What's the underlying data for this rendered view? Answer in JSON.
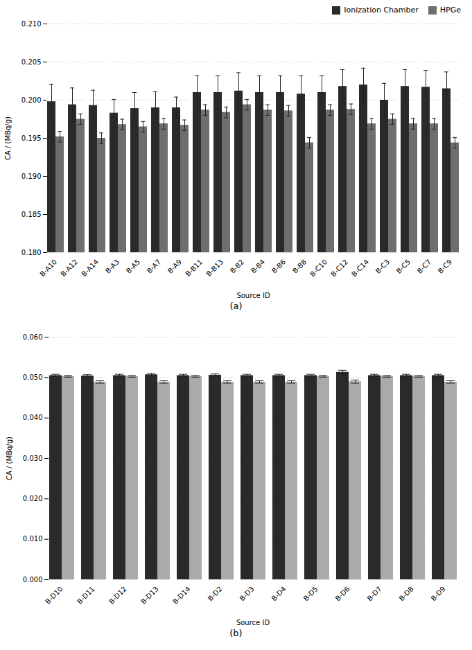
{
  "chart_data": [
    {
      "type": "bar",
      "title": "(a)",
      "categories": [
        "B-A10",
        "B-A12",
        "B-A14",
        "B-A3",
        "B-A5",
        "B-A7",
        "B-A9",
        "B-B11",
        "B-B13",
        "B-B2",
        "B-B4",
        "B-B6",
        "B-B8",
        "B-C10",
        "B-C12",
        "B-C14",
        "B-C3",
        "B-C5",
        "B-C7",
        "B-C9"
      ],
      "series": [
        {
          "name": "Ionization Chamber",
          "color": "#2a2a2a",
          "values": [
            0.1998,
            0.1994,
            0.1993,
            0.1983,
            0.1989,
            0.199,
            0.199,
            0.201,
            0.201,
            0.2012,
            0.201,
            0.201,
            0.2008,
            0.201,
            0.2018,
            0.202,
            0.2,
            0.2018,
            0.2017,
            0.2015
          ],
          "errors": [
            0.0023,
            0.0022,
            0.002,
            0.0018,
            0.0021,
            0.0021,
            0.0014,
            0.0022,
            0.0022,
            0.0024,
            0.0022,
            0.0022,
            0.0024,
            0.0022,
            0.0022,
            0.0022,
            0.0022,
            0.0022,
            0.0022,
            0.0022
          ]
        },
        {
          "name": "HPGe",
          "color": "#6e6e6e",
          "values": [
            0.1952,
            0.1975,
            0.195,
            0.1968,
            0.1965,
            0.1969,
            0.1967,
            0.1987,
            0.1984,
            0.1994,
            0.1987,
            0.1986,
            0.1944,
            0.1987,
            0.1988,
            0.1969,
            0.1975,
            0.1969,
            0.1969,
            0.1944
          ],
          "errors": [
            0.0007,
            0.0007,
            0.0007,
            0.0007,
            0.0007,
            0.0007,
            0.0007,
            0.0007,
            0.0007,
            0.0007,
            0.0007,
            0.0007,
            0.0007,
            0.0007,
            0.0007,
            0.0007,
            0.0007,
            0.0007,
            0.0007,
            0.0007
          ]
        }
      ],
      "ylim": [
        0.18,
        0.21
      ],
      "yticks": [
        {
          "value": 0.18,
          "label": "0.180"
        },
        0.185,
        {
          "value": 0.19,
          "label": "0.190"
        },
        0.195,
        {
          "value": 0.2,
          "label": "0.200"
        },
        0.205,
        {
          "value": 0.21,
          "label": "0.210"
        }
      ],
      "ylabel": "CA / (MBq/g)",
      "xlabel": "Source ID",
      "grid": true,
      "legend": "upper right"
    },
    {
      "type": "bar",
      "title": "(b)",
      "categories": [
        "B-D10",
        "B-D11",
        "B-D12",
        "B-D13",
        "B-D14",
        "B-D2",
        "B-D3",
        "B-D4",
        "B-D5",
        "B-D6",
        "B-D7",
        "B-D8",
        "B-D9"
      ],
      "series": [
        {
          "name": "Ionization Chamber",
          "color": "#2a2a2a",
          "values": [
            0.0505,
            0.0504,
            0.0505,
            0.0507,
            0.0505,
            0.0506,
            0.0505,
            0.0505,
            0.0505,
            0.0513,
            0.0505,
            0.0505,
            0.0505
          ],
          "errors": [
            0.0003,
            0.0003,
            0.0003,
            0.0003,
            0.0003,
            0.0003,
            0.0003,
            0.0003,
            0.0003,
            0.0005,
            0.0003,
            0.0003,
            0.0003
          ]
        },
        {
          "name": "HPGe",
          "color": "#aaaaaa",
          "values": [
            0.0503,
            0.0489,
            0.0503,
            0.0489,
            0.0503,
            0.0489,
            0.0489,
            0.0489,
            0.0503,
            0.049,
            0.0503,
            0.0503,
            0.0489
          ],
          "errors": [
            0.0002,
            0.0003,
            0.0002,
            0.0003,
            0.0002,
            0.0003,
            0.0003,
            0.0003,
            0.0002,
            0.0004,
            0.0002,
            0.0002,
            0.0003
          ]
        }
      ],
      "ylim": [
        0.0,
        0.06
      ],
      "yticks": [
        {
          "value": 0,
          "label": "0.000"
        },
        {
          "value": 0.01,
          "label": "0.010"
        },
        {
          "value": 0.02,
          "label": "0.020"
        },
        {
          "value": 0.03,
          "label": "0.030"
        },
        {
          "value": 0.04,
          "label": "0.040"
        },
        {
          "value": 0.05,
          "label": "0.050"
        },
        {
          "value": 0.06,
          "label": "0.060"
        }
      ],
      "ylabel": "CA / (MBq/g)",
      "xlabel": "Source ID",
      "grid": true,
      "legend": false
    }
  ]
}
